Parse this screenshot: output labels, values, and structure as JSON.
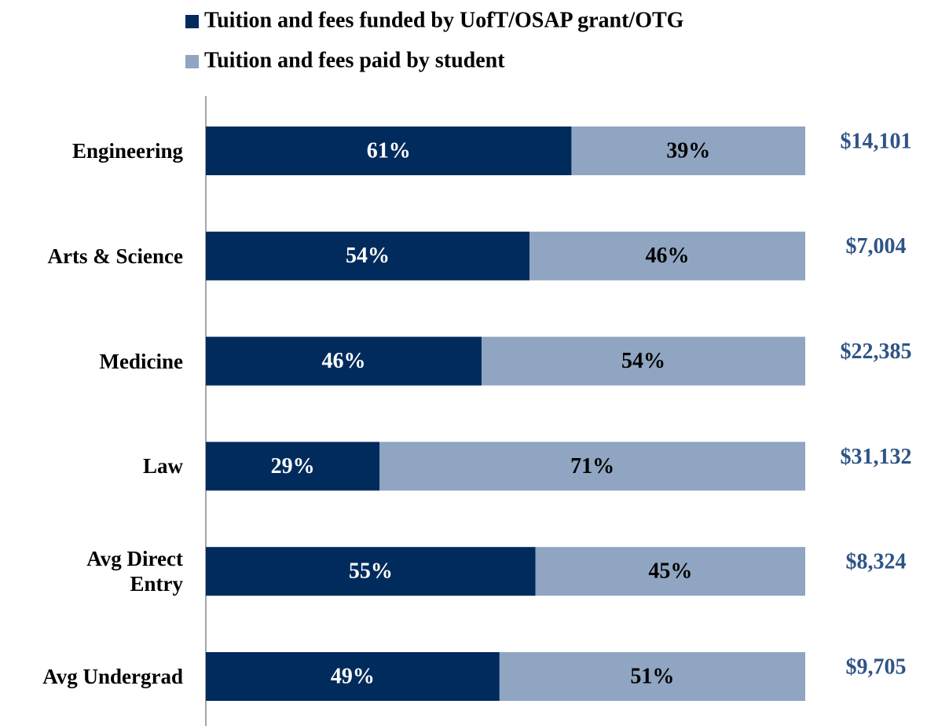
{
  "chart_data": {
    "type": "stacked_bar_horizontal",
    "categories": [
      "Engineering",
      "Arts & Science",
      "Medicine",
      "Law",
      "Avg Direct Entry",
      "Avg Undergrad"
    ],
    "series": [
      {
        "name": "Tuition and fees funded by UofT/OSAP grant/OTG",
        "color": "#002b5c",
        "values": [
          61,
          54,
          46,
          29,
          55,
          49
        ],
        "value_labels": [
          "61%",
          "54%",
          "46%",
          "29%",
          "55%",
          "49%"
        ]
      },
      {
        "name": "Tuition and fees paid by student",
        "color": "#8fa5c1",
        "values": [
          39,
          46,
          54,
          71,
          45,
          51
        ],
        "value_labels": [
          "39%",
          "46%",
          "54%",
          "71%",
          "45%",
          "51%"
        ]
      }
    ],
    "annotations": [
      "$14,101",
      "$7,004",
      "$22,385",
      "$31,132",
      "$8,324",
      "$9,705"
    ],
    "xlim": [
      0,
      100
    ],
    "legend": "top"
  }
}
